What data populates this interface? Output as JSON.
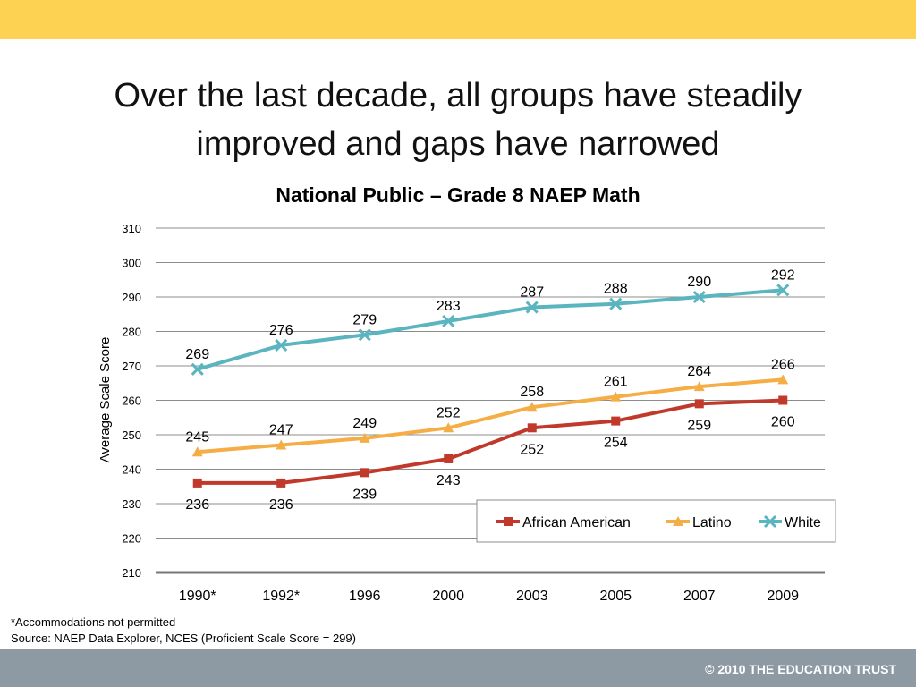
{
  "slide": {
    "title_line1": "Over the last decade, all groups have steadily",
    "title_line2": "improved and gaps have narrowed",
    "footnote1": "*Accommodations not permitted",
    "footnote2": "Source: NAEP Data Explorer, NCES (Proficient Scale Score = 299)",
    "copyright": "© 2010 THE EDUCATION TRUST"
  },
  "colors": {
    "top_bar": "#fdd152",
    "bottom_bar": "#8e9aa3",
    "african_american": "#c0392b",
    "latino": "#f5ad45",
    "white": "#5bb5c0"
  },
  "chart_data": {
    "type": "line",
    "title": "National Public – Grade 8 NAEP Math",
    "xlabel": "",
    "ylabel": "Average Scale Score",
    "categories": [
      "1990*",
      "1992*",
      "1996",
      "2000",
      "2003",
      "2005",
      "2007",
      "2009"
    ],
    "ylim": [
      210,
      310
    ],
    "yticks": [
      210,
      220,
      230,
      240,
      250,
      260,
      270,
      280,
      290,
      300,
      310
    ],
    "grid": true,
    "legend_position": "bottom-right",
    "series": [
      {
        "name": "African American",
        "marker": "square",
        "color": "#c0392b",
        "label_position": "below",
        "values": [
          236,
          236,
          239,
          243,
          252,
          254,
          259,
          260
        ]
      },
      {
        "name": "Latino",
        "marker": "triangle",
        "color": "#f5ad45",
        "label_position": "above",
        "values": [
          245,
          247,
          249,
          252,
          258,
          261,
          264,
          266
        ]
      },
      {
        "name": "White",
        "marker": "x",
        "color": "#5bb5c0",
        "label_position": "above",
        "values": [
          269,
          276,
          279,
          283,
          287,
          288,
          290,
          292
        ]
      }
    ]
  }
}
